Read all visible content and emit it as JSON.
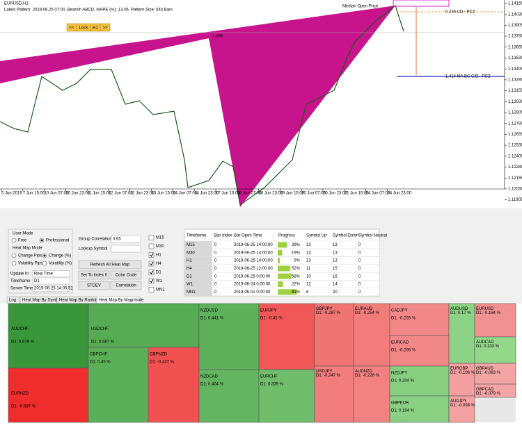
{
  "chart_window": {
    "symbol": "EURUSD,H1",
    "pattern_info": "Latest Pattern: 2019.06.25 07:00, Bearish ABCD, MAPE (%): 13.06, Pattern Size: 544 Bars",
    "lock_controls": [
      "<<",
      "Lock",
      "H1",
      ">>"
    ],
    "annotations": {
      "median": "Median Open Price",
      "ratio": "1.386",
      "pcz_1": "0.236 CD - PCZ",
      "pcz_2": "1.414 MA BC C/D - PCZ"
    },
    "price_axis": [
      "1.14155",
      "1.14030",
      "1.13905",
      "1.13780",
      "1.13655",
      "1.13530",
      "1.13405",
      "1.13280",
      "1.13155",
      "1.13030",
      "1.12905",
      "1.12780",
      "1.12655",
      "1.12530",
      "1.12405",
      "1.12280",
      "1.12155",
      "1.12030",
      "1.11905"
    ],
    "time_axis": [
      "5 Jun 2019",
      "7 Jun 15:00",
      "10 Jun 07:00",
      "10 Jun 23:00",
      "11 Jun 15:00",
      "12 Jun 07:00",
      "12 Jun 23:00",
      "13 Jun 15:00",
      "14 Jun 07:00",
      "14 Jun 23:00",
      "17 Jun 15:00",
      "18 Jun 07:00",
      "18 Jun 23:00",
      "19 Jun 15:00",
      "20 Jun 07:00",
      "20 Jun 23:00",
      "21 Jun 15:00",
      "24 Jun 07:00",
      "24 Jun 23:00"
    ]
  },
  "control_panel": {
    "user_mode_label": "User Mode",
    "user_modes": [
      "Free",
      "Professional"
    ],
    "user_mode_selected": 1,
    "heat_map_mode_label": "Heat Map Mode",
    "heat_map_modes": [
      "Change Pips",
      "Change (%)",
      "Volatility Pips",
      "Volatility (%)"
    ],
    "heat_map_mode_selected": 1,
    "fields": [
      {
        "label": "Update In",
        "value": "Real Time"
      },
      {
        "label": "Timeframe",
        "value": "D1"
      },
      {
        "label": "Server Time",
        "value": "2019-06-25 14:05:51"
      }
    ],
    "group_correlation_label": "Group Correlation",
    "group_correlation": 0.65,
    "lookup_symbol_label": "Lookup Symbol",
    "buttons": [
      "Refresh All Heat Map",
      "Set To Index 0",
      "Color Code",
      "STDEV",
      "Correlation"
    ],
    "timeframes": [
      {
        "name": "M15",
        "checked": false
      },
      {
        "name": "M30",
        "checked": false
      },
      {
        "name": "H1",
        "checked": true
      },
      {
        "name": "H4",
        "checked": true
      },
      {
        "name": "D1",
        "checked": true
      },
      {
        "name": "W1",
        "checked": true
      },
      {
        "name": "MN1",
        "checked": false
      }
    ]
  },
  "timeframe_table": {
    "headers": [
      "Timeframe",
      "Bar Index",
      "Bar Open Time",
      "Progress",
      "Symbol Up",
      "Symbol Down",
      "Symbol Neutral"
    ],
    "rows": [
      [
        "M15",
        "0",
        "2019-06-25 14:00:00",
        "39%",
        "13",
        "13",
        "0"
      ],
      [
        "M30",
        "0",
        "2019-06-25 14:00:00",
        "19%",
        "13",
        "13",
        "0"
      ],
      [
        "H1",
        "0",
        "2019-06-25 14:00:00",
        "9%",
        "13",
        "13",
        "0"
      ],
      [
        "H4",
        "0",
        "2019-06-25 12:00:00",
        "52%",
        "11",
        "15",
        "0"
      ],
      [
        "D1",
        "0",
        "2019-06-25 0:00:00",
        "58%",
        "10",
        "16",
        "0"
      ],
      [
        "W1",
        "0",
        "2019-06-24 0:00:00",
        "22%",
        "12",
        "14",
        "0"
      ],
      [
        "MN1",
        "0",
        "2019-06-01 0:00:00",
        "81%",
        "6",
        "20",
        "0"
      ]
    ],
    "progress": [
      39,
      19,
      9,
      52,
      58,
      22,
      81
    ]
  },
  "tabs": [
    "Log",
    "Heat Map By Symbol",
    "Heat Map By Ranking",
    "Heat Map By Magnitude"
  ],
  "active_tab": 3,
  "heat_map": {
    "tiles": [
      {
        "symbol": "AUDCHF",
        "value": 0.679,
        "value_label": "D1: 0.679 %"
      },
      {
        "symbol": "EURNZD",
        "value": -0.587,
        "value_label": "D1: -0.587 %"
      },
      {
        "symbol": "USDCHF",
        "value": 0.487,
        "value_label": "D1: 0.487 %"
      },
      {
        "symbol": "GBPCHF",
        "value": 0.45,
        "value_label": "D1: 0.45 %"
      },
      {
        "symbol": "GBPNZD",
        "value": -0.437,
        "value_label": "D1: -0.437 %"
      },
      {
        "symbol": "NZDUSD",
        "value": 0.441,
        "value_label": "D1: 0.441 %"
      },
      {
        "symbol": "NZDCAD",
        "value": 0.404,
        "value_label": "D1: 0.404 %"
      },
      {
        "symbol": "EURJPY",
        "value": -0.41,
        "value_label": "D1: -0.41 %"
      },
      {
        "symbol": "EURCHF",
        "value": 0.339,
        "value_label": "D1: 0.339 %"
      },
      {
        "symbol": "GBPJPY",
        "value": -0.287,
        "value_label": "D1: -0.287 %"
      },
      {
        "symbol": "EURAUD",
        "value": -0.254,
        "value_label": "D1: -0.254 %"
      },
      {
        "symbol": "USDJPY",
        "value": -0.247,
        "value_label": "D1: -0.247 %"
      },
      {
        "symbol": "AUDNZD",
        "value": -0.228,
        "value_label": "D1: -0.228 %"
      },
      {
        "symbol": "CADJPY",
        "value": -0.203,
        "value_label": "D1: -0.203 %"
      },
      {
        "symbol": "EURCAD",
        "value": -0.206,
        "value_label": "D1: -0.206 %"
      },
      {
        "symbol": "NZDJPY",
        "value": 0.204,
        "value_label": "D1: 0.204 %"
      },
      {
        "symbol": "GBPEUR",
        "value": 0.194,
        "value_label": "D1: 0.194 %"
      },
      {
        "symbol": "AUDUSD",
        "value": 0.17,
        "value_label": "D1: 0.17 %"
      },
      {
        "symbol": "EURUSD",
        "value": -0.164,
        "value_label": "D1: -0.164 %"
      },
      {
        "symbol": "AUDCAD",
        "value": 0.133,
        "value_label": "D1: 0.133 %"
      },
      {
        "symbol": "EURGBP",
        "value": -0.106,
        "value_label": "D1: -0.106 %"
      },
      {
        "symbol": "GBPAUD",
        "value": -0.083,
        "value_label": "D1: -0.083 %"
      },
      {
        "symbol": "GBPCAD",
        "value": -0.079,
        "value_label": "D1: -0.079 %"
      },
      {
        "symbol": "AUDJPY",
        "value": -0.098,
        "value_label": "D1: -0.098 %"
      }
    ]
  }
}
